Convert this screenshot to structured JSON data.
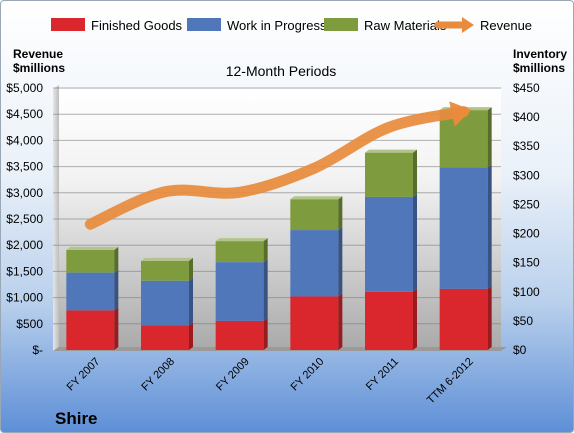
{
  "company": "Shire",
  "chart_data": {
    "type": "bar",
    "title": "12-Month Periods",
    "stacked": true,
    "categories": [
      "FY 2007",
      "FY 2008",
      "FY 2009",
      "FY 2010",
      "FY 2011",
      "TTM 6-2012"
    ],
    "left_axis": {
      "label": [
        "Revenue",
        "$millions"
      ],
      "ylim": [
        0,
        5000
      ],
      "ticks": [
        "$-",
        "$500",
        "$1,000",
        "$1,500",
        "$2,000",
        "$2,500",
        "$3,000",
        "$3,500",
        "$4,000",
        "$4,500",
        "$5,000"
      ]
    },
    "right_axis": {
      "label": [
        "Inventory",
        "$millions"
      ],
      "ylim": [
        0,
        450
      ],
      "ticks": [
        "$0",
        "$50",
        "$100",
        "$150",
        "$200",
        "$250",
        "$300",
        "$350",
        "$400",
        "$450"
      ]
    },
    "series": [
      {
        "name": "Finished Goods",
        "axis": "right",
        "color": "#d9272d",
        "values": [
          68,
          42,
          50,
          92,
          100,
          105
        ]
      },
      {
        "name": "Work in Progress",
        "axis": "right",
        "color": "#5077b9",
        "values": [
          65,
          77,
          101,
          114,
          163,
          209
        ]
      },
      {
        "name": "Raw Materials",
        "axis": "right",
        "color": "#7e9c3e",
        "values": [
          39,
          34,
          36,
          53,
          76,
          98
        ]
      },
      {
        "name": "Revenue",
        "axis": "left",
        "type": "line",
        "color": "#e88b3c",
        "values": [
          2400,
          3020,
          3010,
          3470,
          4250,
          4550
        ]
      }
    ],
    "grid": "horizontal",
    "legend": "top"
  }
}
